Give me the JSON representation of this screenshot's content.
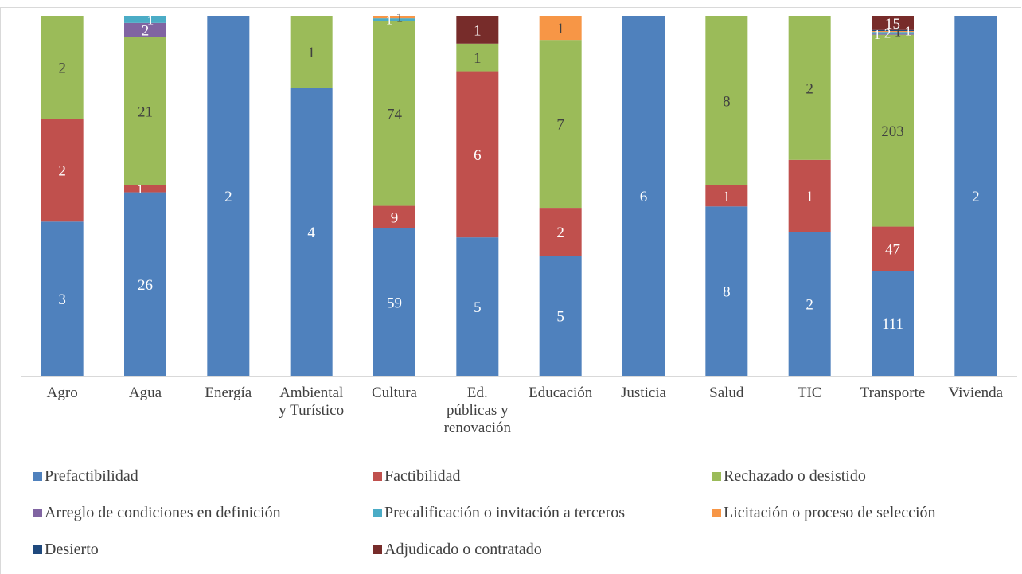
{
  "chart_data": {
    "type": "bar",
    "stacked": true,
    "normalized": true,
    "title": "",
    "xlabel": "",
    "ylabel": "",
    "grid": false,
    "legend_position": "bottom",
    "categories": [
      "Agro",
      "Agua",
      "Energía",
      "Ambiental y Turístico",
      "Cultura",
      "Ed. públicas y renovación",
      "Educación",
      "Justicia",
      "Salud",
      "TIC",
      "Transporte",
      "Vivienda"
    ],
    "series": [
      {
        "name": "Prefactibilidad",
        "color": "#4f81bd",
        "label_color": "#ffffff",
        "values": [
          3,
          26,
          2,
          4,
          59,
          5,
          5,
          6,
          8,
          2,
          111,
          2
        ]
      },
      {
        "name": "Factibilidad",
        "color": "#c0504d",
        "label_color": "#ffffff",
        "values": [
          2,
          1,
          0,
          0,
          9,
          6,
          2,
          0,
          1,
          1,
          47,
          0
        ]
      },
      {
        "name": "Rechazado o desistido",
        "color": "#9bbb59",
        "label_color": "#404040",
        "values": [
          2,
          21,
          0,
          1,
          74,
          1,
          7,
          0,
          8,
          2,
          203,
          0
        ]
      },
      {
        "name": "Arreglo de condiciones en definición",
        "color": "#8064a2",
        "label_color": "#ffffff",
        "values": [
          0,
          2,
          0,
          0,
          0,
          0,
          0,
          0,
          0,
          0,
          1,
          0
        ]
      },
      {
        "name": "Precalificación o invitación a terceros",
        "color": "#4bacc6",
        "label_color": "#ffffff",
        "values": [
          0,
          1,
          0,
          0,
          1,
          0,
          0,
          0,
          0,
          0,
          2,
          0
        ]
      },
      {
        "name": "Licitación o proceso de selección",
        "color": "#f79646",
        "label_color": "#404040",
        "values": [
          0,
          0,
          0,
          0,
          1,
          0,
          1,
          0,
          0,
          0,
          1,
          0
        ]
      },
      {
        "name": "Desierto",
        "color": "#1f497d",
        "label_color": "#ffffff",
        "values": [
          0,
          0,
          0,
          0,
          0,
          0,
          0,
          0,
          0,
          0,
          1,
          0
        ]
      },
      {
        "name": "Adjudicado o contratado",
        "color": "#772c2a",
        "label_color": "#ffffff",
        "values": [
          0,
          0,
          0,
          0,
          0,
          1,
          0,
          0,
          0,
          0,
          15,
          0
        ]
      }
    ]
  },
  "category_lines": [
    [
      "Agro"
    ],
    [
      "Agua"
    ],
    [
      "Energía"
    ],
    [
      "Ambiental",
      "y Turístico"
    ],
    [
      "Cultura"
    ],
    [
      "Ed.",
      "públicas y",
      "renovación"
    ],
    [
      "Educación"
    ],
    [
      "Justicia"
    ],
    [
      "Salud"
    ],
    [
      "TIC"
    ],
    [
      "Transporte"
    ],
    [
      "Vivienda"
    ]
  ]
}
